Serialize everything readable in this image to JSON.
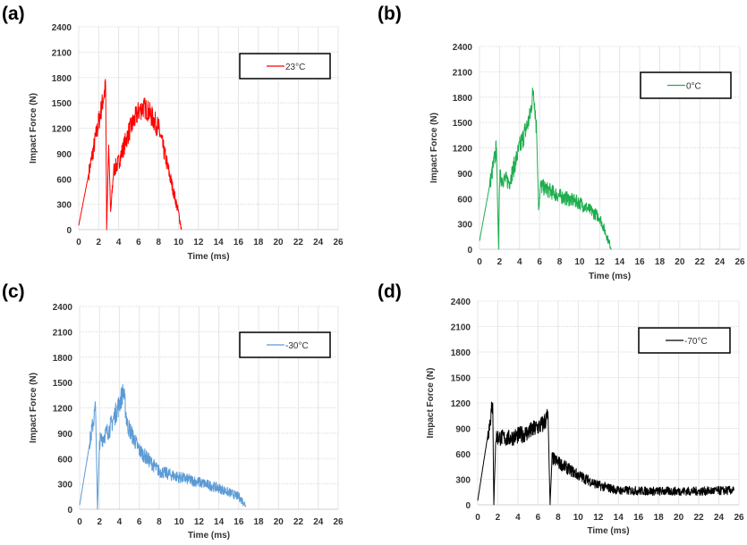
{
  "chart_data": [
    {
      "panel_label": "(a)",
      "type": "line",
      "xlabel": "Time (ms)",
      "ylabel": "Impact Force (N)",
      "xlim": [
        0,
        26
      ],
      "ylim": [
        0,
        2400
      ],
      "xticks": [
        0,
        2,
        4,
        6,
        8,
        10,
        12,
        14,
        16,
        18,
        20,
        22,
        24,
        26
      ],
      "yticks": [
        0,
        300,
        600,
        900,
        1200,
        1500,
        1800,
        2100,
        2400
      ],
      "grid": true,
      "legend_position": "top-right",
      "series": [
        {
          "name": "23°C",
          "color": "#ff0000",
          "points": [
            [
              0,
              50
            ],
            [
              2.7,
              1700
            ],
            [
              2.8,
              0
            ],
            [
              3,
              1000
            ],
            [
              3.2,
              200
            ],
            [
              3.5,
              700
            ],
            [
              4,
              800
            ],
            [
              5,
              1150
            ],
            [
              6,
              1400
            ],
            [
              6.5,
              1450
            ],
            [
              7,
              1400
            ],
            [
              8,
              1200
            ],
            [
              9,
              700
            ],
            [
              10,
              200
            ],
            [
              10.3,
              0
            ]
          ]
        }
      ]
    },
    {
      "panel_label": "(b)",
      "type": "line",
      "xlabel": "Time (ms)",
      "ylabel": "Impact Force (N)",
      "xlim": [
        0,
        26
      ],
      "ylim": [
        0,
        2400
      ],
      "xticks": [
        0,
        2,
        4,
        6,
        8,
        10,
        12,
        14,
        16,
        18,
        20,
        22,
        24,
        26
      ],
      "yticks": [
        0,
        300,
        600,
        900,
        1200,
        1500,
        1800,
        2100,
        2400
      ],
      "grid": true,
      "legend_position": "top-right",
      "series": [
        {
          "name": "0°C",
          "color": "#1fae4f",
          "points": [
            [
              0,
              100
            ],
            [
              1.7,
              1200
            ],
            [
              1.9,
              0
            ],
            [
              2,
              850
            ],
            [
              3,
              800
            ],
            [
              4,
              1200
            ],
            [
              5,
              1550
            ],
            [
              5.4,
              1900
            ],
            [
              5.7,
              1400
            ],
            [
              5.9,
              500
            ],
            [
              6.1,
              750
            ],
            [
              8,
              630
            ],
            [
              10,
              550
            ],
            [
              12,
              380
            ],
            [
              13.2,
              0
            ]
          ]
        }
      ]
    },
    {
      "panel_label": "(c)",
      "type": "line",
      "xlabel": "Time (ms)",
      "ylabel": "Impact Force (N)",
      "xlim": [
        0,
        26
      ],
      "ylim": [
        0,
        2400
      ],
      "xticks": [
        0,
        2,
        4,
        6,
        8,
        10,
        12,
        14,
        16,
        18,
        20,
        22,
        24,
        26
      ],
      "yticks": [
        0,
        300,
        600,
        900,
        1200,
        1500,
        1800,
        2100,
        2400
      ],
      "grid": true,
      "legend_position": "top-right",
      "series": [
        {
          "name": "-30°C",
          "color": "#5b9bd5",
          "points": [
            [
              0,
              50
            ],
            [
              1.6,
              1200
            ],
            [
              1.8,
              0
            ],
            [
              2,
              800
            ],
            [
              3,
              950
            ],
            [
              4,
              1250
            ],
            [
              4.4,
              1400
            ],
            [
              4.8,
              1000
            ],
            [
              6,
              700
            ],
            [
              8,
              450
            ],
            [
              10,
              380
            ],
            [
              12,
              320
            ],
            [
              14,
              250
            ],
            [
              16,
              150
            ],
            [
              16.7,
              50
            ]
          ]
        }
      ]
    },
    {
      "panel_label": "(d)",
      "type": "line",
      "xlabel": "Time (ms)",
      "ylabel": "Impact Force (N)",
      "xlim": [
        0,
        26
      ],
      "ylim": [
        0,
        2400
      ],
      "xticks": [
        0,
        2,
        4,
        6,
        8,
        10,
        12,
        14,
        16,
        18,
        20,
        22,
        24,
        26
      ],
      "yticks": [
        0,
        300,
        600,
        900,
        1200,
        1500,
        1800,
        2100,
        2400
      ],
      "grid": true,
      "legend_position": "top-right",
      "series": [
        {
          "name": "-70°C",
          "color": "#000000",
          "points": [
            [
              0,
              50
            ],
            [
              1.5,
              1200
            ],
            [
              1.6,
              0
            ],
            [
              1.8,
              800
            ],
            [
              3,
              780
            ],
            [
              5,
              850
            ],
            [
              6.5,
              950
            ],
            [
              7,
              1050
            ],
            [
              7.2,
              0
            ],
            [
              7.4,
              550
            ],
            [
              8,
              500
            ],
            [
              10,
              350
            ],
            [
              12,
              230
            ],
            [
              14,
              170
            ],
            [
              18,
              160
            ],
            [
              22,
              160
            ],
            [
              25.5,
              170
            ]
          ]
        }
      ]
    }
  ]
}
